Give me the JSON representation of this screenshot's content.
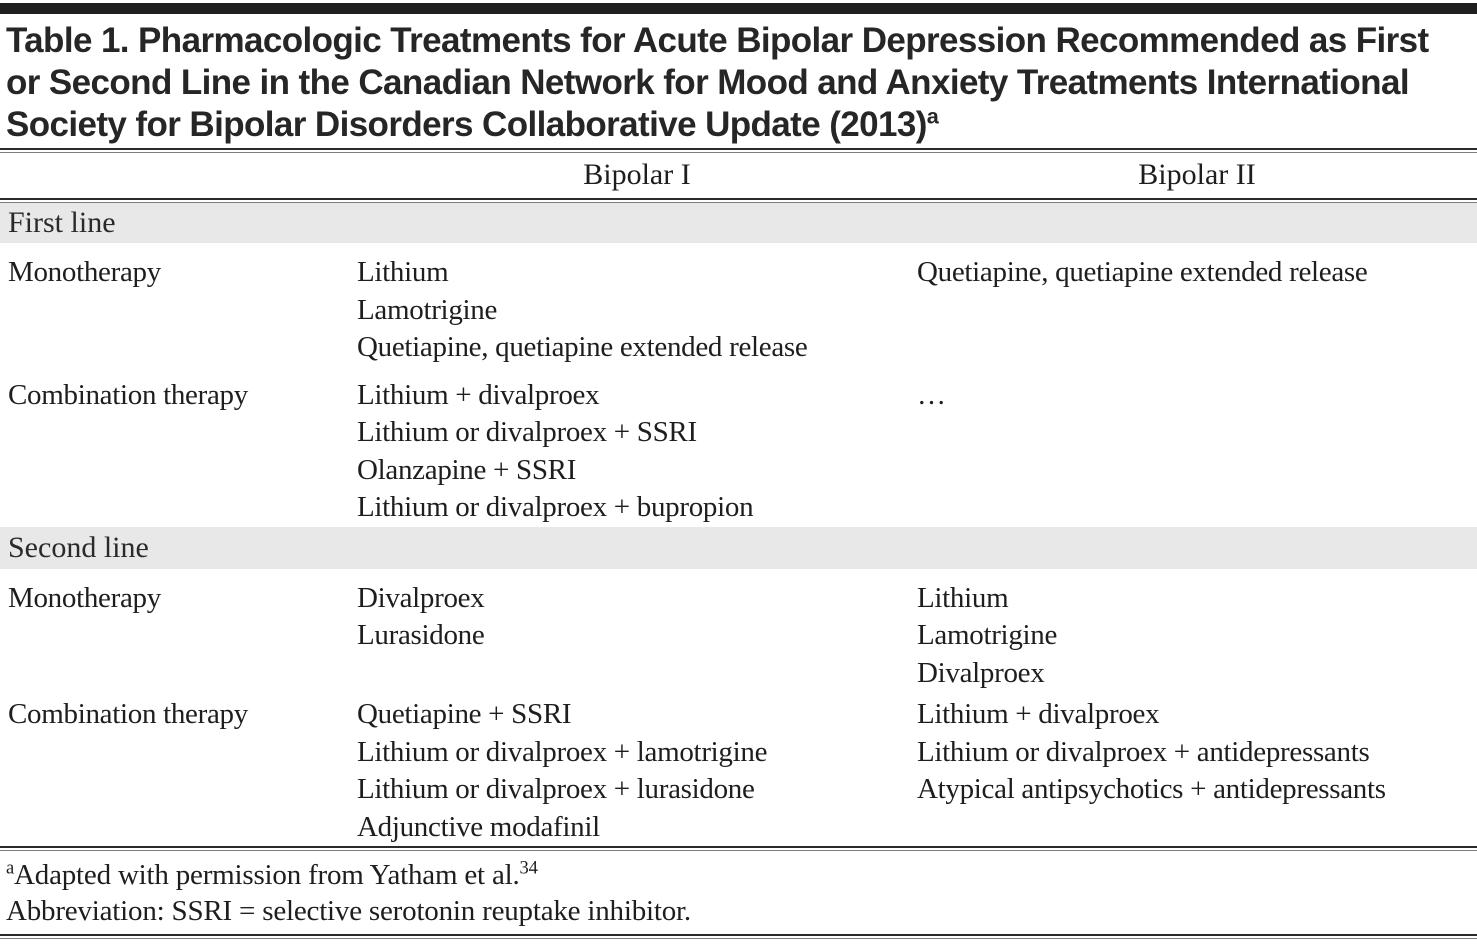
{
  "page": {
    "title": {
      "lines": [
        "Table 1. Pharmacologic Treatments for Acute Bipolar Depression Recommended as First",
        "or Second Line in the Canadian Network for Mood and Anxiety Treatments International",
        "Society for Bipolar Disorders Collaborative Update (2013)"
      ],
      "superscript": "a"
    },
    "table": {
      "column_headers": [
        "Bipolar I",
        "Bipolar II"
      ],
      "sections": [
        {
          "label": "First line",
          "rows": [
            {
              "label": "Monotherapy",
              "bipolar_i": [
                "Lithium",
                "Lamotrigine",
                "Quetiapine, quetiapine extended release"
              ],
              "bipolar_ii": [
                "Quetiapine, quetiapine extended release"
              ]
            },
            {
              "label": "Combination therapy",
              "bipolar_i": [
                "Lithium + divalproex",
                "Lithium or divalproex + SSRI",
                "Olanzapine + SSRI",
                "Lithium or divalproex + bupropion"
              ],
              "bipolar_ii": [
                "…"
              ]
            }
          ]
        },
        {
          "label": "Second line",
          "rows": [
            {
              "label": "Monotherapy",
              "bipolar_i": [
                "Divalproex",
                "Lurasidone"
              ],
              "bipolar_ii": [
                "Lithium",
                "Lamotrigine",
                "Divalproex"
              ]
            },
            {
              "label": "Combination therapy",
              "bipolar_i": [
                "Quetiapine + SSRI",
                "Lithium or divalproex + lamotrigine",
                "Lithium or divalproex + lurasidone",
                "Adjunctive modafinil"
              ],
              "bipolar_ii": [
                "Lithium + divalproex",
                "Lithium or divalproex + antidepressants",
                "Atypical antipsychotics + antidepressants"
              ]
            }
          ]
        }
      ]
    },
    "footnotes": {
      "source": {
        "marker": "a",
        "text": "Adapted with permission from Yatham et al.",
        "reference": "34"
      },
      "abbreviation": "Abbreviation: SSRI = selective serotonin reuptake inhibitor."
    },
    "colors": {
      "top_bar": "#1f1f1f",
      "section_band": "#e8e8e8",
      "rule": "#2b2b2b",
      "text": "#1e1e1e"
    }
  }
}
